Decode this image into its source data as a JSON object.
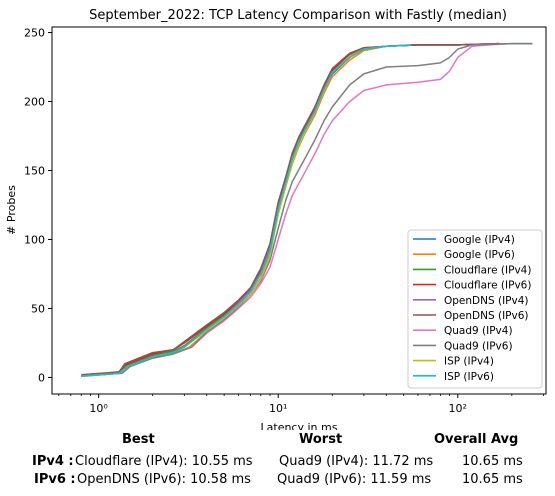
{
  "chart_data": {
    "type": "line",
    "title": "September_2022: TCP Latency Comparison with Fastly (median)",
    "xlabel": "Latency in ms",
    "ylabel": "# Probes",
    "xscale": "log",
    "xlim": [
      0.55,
      310
    ],
    "ylim": [
      -12,
      254
    ],
    "x_ticks": [
      1,
      10,
      100
    ],
    "x_tick_labels": [
      "10⁰",
      "10¹",
      "10²"
    ],
    "y_ticks": [
      0,
      50,
      100,
      150,
      200,
      250
    ],
    "grid": false,
    "legend_position": "lower-right",
    "series": [
      {
        "name": "Google (IPv4)",
        "color": "#1f77b4",
        "points": [
          [
            0.8,
            1
          ],
          [
            1.3,
            3
          ],
          [
            1.4,
            8
          ],
          [
            2,
            15
          ],
          [
            2.5,
            18
          ],
          [
            3,
            22
          ],
          [
            4,
            35
          ],
          [
            5,
            44
          ],
          [
            6,
            53
          ],
          [
            7,
            62
          ],
          [
            8,
            75
          ],
          [
            9,
            92
          ],
          [
            10,
            122
          ],
          [
            11,
            140
          ],
          [
            12,
            158
          ],
          [
            13,
            170
          ],
          [
            14,
            178
          ],
          [
            16,
            192
          ],
          [
            18,
            208
          ],
          [
            20,
            220
          ],
          [
            25,
            232
          ],
          [
            30,
            238
          ],
          [
            40,
            240
          ],
          [
            60,
            241
          ],
          [
            100,
            241
          ],
          [
            200,
            242
          ],
          [
            260,
            242
          ]
        ]
      },
      {
        "name": "Google (IPv6)",
        "color": "#ff7f0e",
        "points": [
          [
            0.85,
            1
          ],
          [
            1.3,
            3
          ],
          [
            1.45,
            8
          ],
          [
            2,
            14
          ],
          [
            2.6,
            17
          ],
          [
            3.2,
            22
          ],
          [
            4,
            33
          ],
          [
            5,
            43
          ],
          [
            6,
            51
          ],
          [
            7,
            60
          ],
          [
            8,
            72
          ],
          [
            9,
            90
          ],
          [
            10,
            120
          ],
          [
            11,
            138
          ],
          [
            12,
            155
          ],
          [
            13,
            167
          ],
          [
            14,
            176
          ],
          [
            16,
            190
          ],
          [
            18,
            206
          ],
          [
            20,
            218
          ],
          [
            25,
            230
          ],
          [
            30,
            237
          ],
          [
            40,
            240
          ],
          [
            60,
            241
          ],
          [
            100,
            241
          ],
          [
            180,
            242
          ]
        ]
      },
      {
        "name": "Cloudflare (IPv4)",
        "color": "#2ca02c",
        "points": [
          [
            0.8,
            1
          ],
          [
            1.3,
            3
          ],
          [
            1.4,
            8
          ],
          [
            2,
            16
          ],
          [
            2.6,
            19
          ],
          [
            3,
            23
          ],
          [
            4,
            36
          ],
          [
            5,
            45
          ],
          [
            6,
            54
          ],
          [
            7,
            63
          ],
          [
            8,
            77
          ],
          [
            9,
            95
          ],
          [
            10,
            124
          ],
          [
            11,
            142
          ],
          [
            12,
            160
          ],
          [
            13,
            172
          ],
          [
            14,
            180
          ],
          [
            16,
            194
          ],
          [
            18,
            210
          ],
          [
            20,
            222
          ],
          [
            25,
            233
          ],
          [
            30,
            238
          ],
          [
            40,
            240
          ],
          [
            60,
            241
          ],
          [
            100,
            241
          ],
          [
            170,
            242
          ]
        ]
      },
      {
        "name": "Cloudflare (IPv6)",
        "color": "#d62728",
        "points": [
          [
            0.8,
            1
          ],
          [
            1.3,
            4
          ],
          [
            1.4,
            9
          ],
          [
            2,
            17
          ],
          [
            2.6,
            20
          ],
          [
            3,
            25
          ],
          [
            4,
            37
          ],
          [
            5,
            46
          ],
          [
            6,
            55
          ],
          [
            7,
            64
          ],
          [
            8,
            78
          ],
          [
            9,
            96
          ],
          [
            10,
            126
          ],
          [
            11,
            144
          ],
          [
            12,
            162
          ],
          [
            13,
            173
          ],
          [
            14,
            181
          ],
          [
            16,
            195
          ],
          [
            18,
            211
          ],
          [
            20,
            223
          ],
          [
            25,
            234
          ],
          [
            30,
            239
          ],
          [
            40,
            240
          ],
          [
            60,
            241
          ],
          [
            100,
            241
          ],
          [
            170,
            242
          ]
        ]
      },
      {
        "name": "OpenDNS (IPv4)",
        "color": "#9467bd",
        "points": [
          [
            0.8,
            1
          ],
          [
            1.3,
            3
          ],
          [
            1.45,
            8
          ],
          [
            2,
            15
          ],
          [
            2.6,
            18
          ],
          [
            3,
            22
          ],
          [
            4,
            35
          ],
          [
            5,
            44
          ],
          [
            6,
            54
          ],
          [
            7,
            63
          ],
          [
            8,
            76
          ],
          [
            9,
            94
          ],
          [
            10,
            123
          ],
          [
            11,
            141
          ],
          [
            12,
            159
          ],
          [
            13,
            171
          ],
          [
            14,
            179
          ],
          [
            16,
            193
          ],
          [
            18,
            209
          ],
          [
            20,
            221
          ],
          [
            25,
            232
          ],
          [
            30,
            238
          ],
          [
            40,
            240
          ],
          [
            60,
            241
          ],
          [
            100,
            241
          ],
          [
            160,
            242
          ]
        ]
      },
      {
        "name": "OpenDNS (IPv6)",
        "color": "#8c564b",
        "points": [
          [
            0.8,
            2
          ],
          [
            1.3,
            4
          ],
          [
            1.4,
            10
          ],
          [
            2,
            18
          ],
          [
            2.6,
            20
          ],
          [
            3,
            26
          ],
          [
            4,
            38
          ],
          [
            5,
            47
          ],
          [
            6,
            56
          ],
          [
            7,
            65
          ],
          [
            8,
            79
          ],
          [
            9,
            97
          ],
          [
            10,
            127
          ],
          [
            11,
            145
          ],
          [
            12,
            163
          ],
          [
            13,
            174
          ],
          [
            14,
            182
          ],
          [
            16,
            196
          ],
          [
            18,
            212
          ],
          [
            20,
            224
          ],
          [
            25,
            235
          ],
          [
            30,
            239
          ],
          [
            40,
            240
          ],
          [
            60,
            241
          ],
          [
            100,
            241
          ],
          [
            170,
            242
          ]
        ]
      },
      {
        "name": "Quad9 (IPv4)",
        "color": "#e377c2",
        "points": [
          [
            0.8,
            1
          ],
          [
            1.35,
            3
          ],
          [
            1.5,
            8
          ],
          [
            2,
            14
          ],
          [
            2.6,
            17
          ],
          [
            3.3,
            22
          ],
          [
            4,
            32
          ],
          [
            5,
            41
          ],
          [
            6,
            50
          ],
          [
            7,
            58
          ],
          [
            8,
            68
          ],
          [
            9,
            80
          ],
          [
            10,
            100
          ],
          [
            11,
            118
          ],
          [
            12,
            132
          ],
          [
            14,
            148
          ],
          [
            16,
            162
          ],
          [
            18,
            176
          ],
          [
            20,
            186
          ],
          [
            25,
            200
          ],
          [
            30,
            208
          ],
          [
            40,
            212
          ],
          [
            60,
            214
          ],
          [
            80,
            216
          ],
          [
            90,
            222
          ],
          [
            100,
            232
          ],
          [
            120,
            240
          ],
          [
            150,
            241
          ],
          [
            200,
            242
          ]
        ]
      },
      {
        "name": "Quad9 (IPv6)",
        "color": "#7f7f7f",
        "points": [
          [
            0.8,
            1
          ],
          [
            1.35,
            3
          ],
          [
            1.5,
            8
          ],
          [
            2,
            14
          ],
          [
            2.6,
            17
          ],
          [
            3.3,
            22
          ],
          [
            4,
            33
          ],
          [
            5,
            42
          ],
          [
            6,
            51
          ],
          [
            7,
            60
          ],
          [
            8,
            70
          ],
          [
            9,
            85
          ],
          [
            10,
            108
          ],
          [
            11,
            128
          ],
          [
            12,
            142
          ],
          [
            14,
            158
          ],
          [
            16,
            172
          ],
          [
            18,
            186
          ],
          [
            20,
            196
          ],
          [
            25,
            212
          ],
          [
            30,
            220
          ],
          [
            40,
            225
          ],
          [
            60,
            226
          ],
          [
            80,
            228
          ],
          [
            90,
            232
          ],
          [
            100,
            238
          ],
          [
            120,
            241
          ],
          [
            200,
            242
          ],
          [
            260,
            242
          ]
        ]
      },
      {
        "name": "ISP (IPv4)",
        "color": "#bcbd22",
        "points": [
          [
            0.8,
            1
          ],
          [
            1.3,
            3
          ],
          [
            1.45,
            8
          ],
          [
            2,
            15
          ],
          [
            2.6,
            18
          ],
          [
            3,
            22
          ],
          [
            4,
            34
          ],
          [
            5,
            43
          ],
          [
            6,
            52
          ],
          [
            7,
            60
          ],
          [
            8,
            71
          ],
          [
            9,
            88
          ],
          [
            10,
            118
          ],
          [
            11,
            138
          ],
          [
            12,
            156
          ],
          [
            13,
            168
          ],
          [
            14,
            177
          ],
          [
            16,
            192
          ],
          [
            18,
            208
          ],
          [
            20,
            221
          ],
          [
            25,
            233
          ],
          [
            30,
            238
          ],
          [
            40,
            240
          ],
          [
            55,
            241
          ]
        ]
      },
      {
        "name": "ISP (IPv6)",
        "color": "#17becf",
        "points": [
          [
            0.8,
            1
          ],
          [
            1.3,
            3
          ],
          [
            1.45,
            8
          ],
          [
            2,
            15
          ],
          [
            2.6,
            18
          ],
          [
            3,
            22
          ],
          [
            4,
            35
          ],
          [
            5,
            44
          ],
          [
            6,
            53
          ],
          [
            7,
            62
          ],
          [
            8,
            75
          ],
          [
            9,
            92
          ],
          [
            10,
            122
          ],
          [
            11,
            141
          ],
          [
            12,
            159
          ],
          [
            13,
            171
          ],
          [
            14,
            179
          ],
          [
            16,
            193
          ],
          [
            18,
            209
          ],
          [
            20,
            221
          ],
          [
            25,
            232
          ],
          [
            30,
            238
          ],
          [
            40,
            240
          ],
          [
            55,
            241
          ]
        ]
      }
    ]
  },
  "summary": {
    "headers": {
      "best": "Best",
      "worst": "Worst",
      "avg": "Overall Avg"
    },
    "rows": [
      {
        "label": "IPv4 :",
        "best": "Cloudflare (IPv4): 10.55 ms",
        "worst": "Quad9 (IPv4): 11.72 ms",
        "avg": "10.65 ms"
      },
      {
        "label": "IPv6 :",
        "best": "OpenDNS (IPv6): 10.58 ms",
        "worst": "Quad9 (IPv6): 11.59 ms",
        "avg": "10.65 ms"
      }
    ]
  }
}
